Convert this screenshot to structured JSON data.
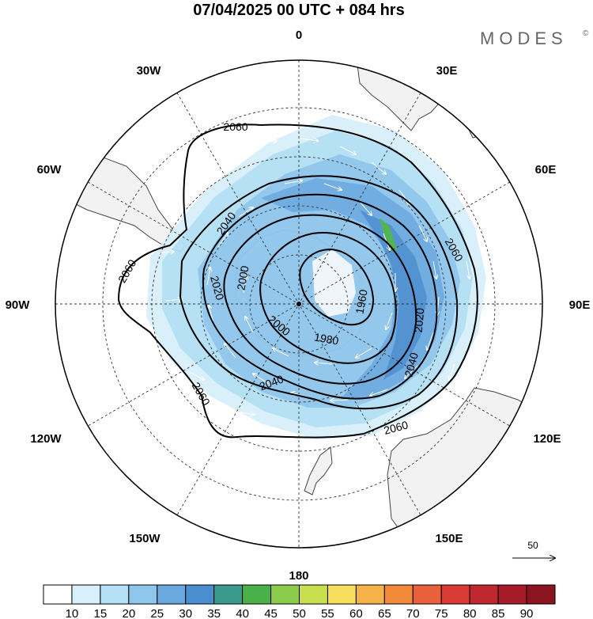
{
  "header": {
    "title": "07/04/2025  00 UTC  + 084 hrs",
    "logo": "MODES",
    "logo_mark": "©"
  },
  "map": {
    "projection": "south-polar-stereographic",
    "longitude_labels": [
      "0",
      "30E",
      "60E",
      "90E",
      "120E",
      "150E",
      "180",
      "150W",
      "120W",
      "90W",
      "60W",
      "30W"
    ],
    "contour_labels": [
      "2060",
      "2060",
      "2060",
      "2060",
      "2060",
      "2040",
      "2040",
      "2040",
      "2020",
      "2020",
      "2000",
      "2000",
      "1980",
      "1960"
    ],
    "reference_vector_label": "50",
    "colors": {
      "land": "#f2f2f2",
      "ocean": "#ffffff",
      "contour": "#000000",
      "wind_arrow": "#ffffff"
    }
  },
  "colorbar": {
    "labels": [
      "10",
      "15",
      "20",
      "25",
      "30",
      "35",
      "40",
      "45",
      "50",
      "55",
      "60",
      "65",
      "70",
      "75",
      "80",
      "85",
      "90"
    ],
    "colors": [
      "#ffffff",
      "#d7f0fb",
      "#b3e0f5",
      "#8ec6ec",
      "#6aa9df",
      "#4b8ecf",
      "#3a9a8c",
      "#4ab04a",
      "#8ccc4c",
      "#c8e04e",
      "#f6df5c",
      "#f5b24a",
      "#f08a3a",
      "#e9603a",
      "#d93a36",
      "#c02830",
      "#a51c28",
      "#8a1420"
    ]
  }
}
